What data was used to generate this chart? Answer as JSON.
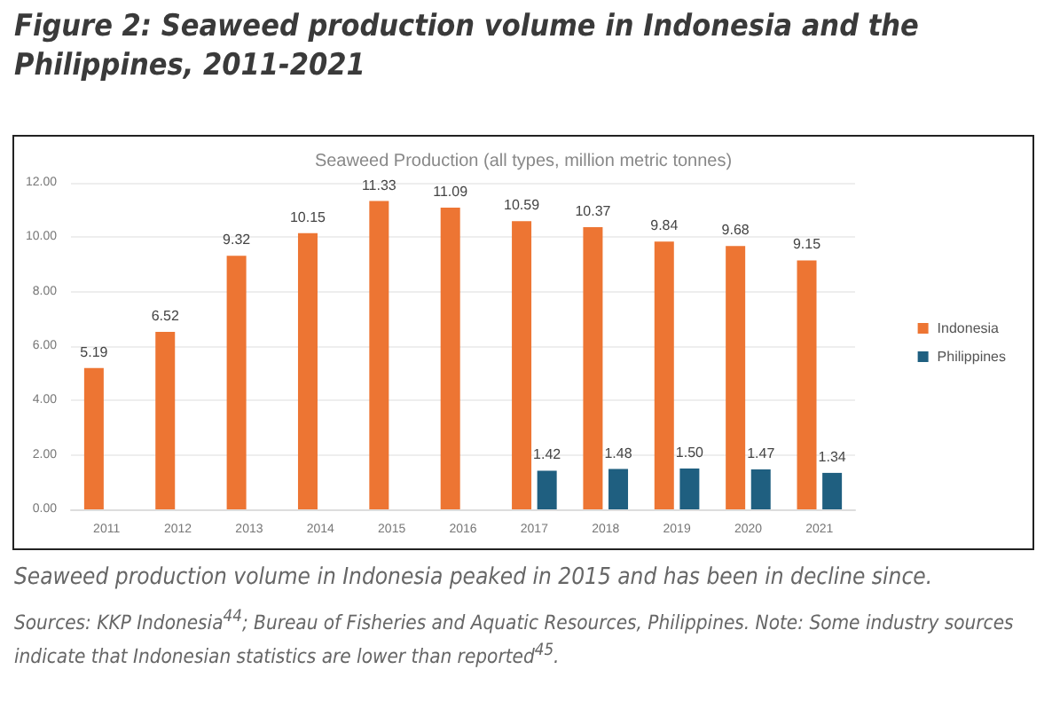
{
  "chart_data": {
    "type": "bar",
    "title": "Figure 2: Seaweed production volume in Indonesia and the Philippines, 2011-2021",
    "subtitle": "Seaweed Production (all types, million metric tonnes)",
    "categories": [
      "2011",
      "2012",
      "2013",
      "2014",
      "2015",
      "2016",
      "2017",
      "2018",
      "2019",
      "2020",
      "2021"
    ],
    "series": [
      {
        "name": "Indonesia",
        "color": "#ed7533",
        "values": [
          5.19,
          6.52,
          9.32,
          10.15,
          11.33,
          11.09,
          10.59,
          10.37,
          9.84,
          9.68,
          9.15
        ],
        "value_labels": [
          "5.19",
          "6.52",
          "9.32",
          "10.15",
          "11.33",
          "11.09",
          "10.59",
          "10.37",
          "9.84",
          "9.68",
          "9.15"
        ]
      },
      {
        "name": "Philippines",
        "color": "#1f5f80",
        "values": [
          null,
          null,
          null,
          null,
          null,
          null,
          1.42,
          1.48,
          1.5,
          1.47,
          1.34
        ],
        "value_labels": [
          null,
          null,
          null,
          null,
          null,
          null,
          "1.42",
          "1.48",
          "1.50",
          "1.47",
          "1.34"
        ]
      }
    ],
    "ylim": [
      0,
      12
    ],
    "yticks": [
      {
        "value": 0,
        "label": "0.00"
      },
      {
        "value": 2,
        "label": "2.00"
      },
      {
        "value": 4,
        "label": "4.00"
      },
      {
        "value": 6,
        "label": "6.00"
      },
      {
        "value": 8,
        "label": "8.00"
      },
      {
        "value": 10,
        "label": "10.00"
      },
      {
        "value": 12,
        "label": "12.00"
      }
    ],
    "grid": "y",
    "legend": "right",
    "annotations": [
      "Seaweed production volume in Indonesia peaked in 2015 and has been in decline since.",
      "Sources: KKP Indonesia$^{44}$; Bureau of Fisheries and Aquatic Resources, Philippines. Note: Some industry sources indicate that Indonesian statistics are lower than reported$^{45}$."
    ]
  }
}
